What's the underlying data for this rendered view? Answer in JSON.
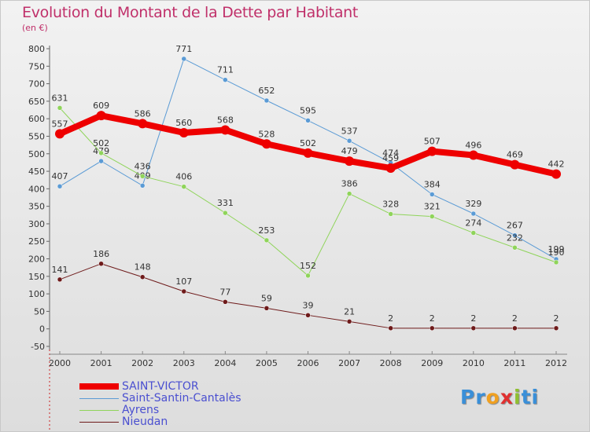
{
  "header": {
    "title": "Evolution du Montant de la Dette par Habitant",
    "subtitle": "(en €)"
  },
  "logo": {
    "letters": [
      "P",
      "r",
      "o",
      "x",
      "i",
      "t",
      "i"
    ],
    "colors": [
      "#3a8fd8",
      "#3a8fd8",
      "#f0a020",
      "#e03030",
      "#90c030",
      "#3a8fd8",
      "#3a8fd8"
    ]
  },
  "chart_data": {
    "type": "line",
    "x": [
      "2000",
      "2001",
      "2002",
      "2003",
      "2004",
      "2005",
      "2006",
      "2007",
      "2008",
      "2009",
      "2010",
      "2011",
      "2012"
    ],
    "yticks": [
      "800",
      "750",
      "700",
      "650",
      "600",
      "550",
      "500",
      "450",
      "400",
      "350",
      "300",
      "250",
      "200",
      "150",
      "100",
      "50",
      "0",
      "-50"
    ],
    "ylim": [
      -50,
      800
    ],
    "grid": false,
    "legend_position": "bottom-left",
    "series": [
      {
        "name": "Saint-Santin-Cantalès",
        "color": "#5b9bd5",
        "width": 1,
        "values": [
          407,
          479,
          409,
          771,
          711,
          652,
          595,
          537,
          474,
          384,
          329,
          267,
          199
        ],
        "labels": [
          "407",
          "479",
          "409",
          "771",
          "711",
          "652",
          "595",
          "537",
          "474",
          "384",
          "329",
          "267",
          "199"
        ]
      },
      {
        "name": "Ayrens",
        "color": "#8fd45a",
        "width": 1,
        "values": [
          631,
          502,
          436,
          406,
          331,
          253,
          152,
          386,
          328,
          321,
          274,
          232,
          190
        ],
        "labels": [
          "631",
          "502",
          "436",
          "406",
          "331",
          "253",
          "152",
          "386",
          "328",
          "321",
          "274",
          "232",
          "190"
        ]
      },
      {
        "name": "Nieudan",
        "color": "#6e1a1a",
        "width": 1,
        "values": [
          141,
          186,
          148,
          107,
          77,
          59,
          39,
          21,
          2,
          2,
          2,
          2,
          2
        ],
        "labels": [
          "141",
          "186",
          "148",
          "107",
          "77",
          "59",
          "39",
          "21",
          "2",
          "2",
          "2",
          "2",
          "2"
        ]
      },
      {
        "name": "SAINT-VICTOR",
        "color": "#ee0000",
        "width": 8,
        "values": [
          557,
          609,
          586,
          560,
          568,
          528,
          502,
          479,
          459,
          507,
          496,
          469,
          442
        ],
        "labels": [
          "557",
          "609",
          "586",
          "560",
          "568",
          "528",
          "502",
          "479",
          "459",
          "507",
          "496",
          "469",
          "442"
        ]
      }
    ],
    "legend_order": [
      "SAINT-VICTOR",
      "Saint-Santin-Cantalès",
      "Ayrens",
      "Nieudan"
    ]
  }
}
